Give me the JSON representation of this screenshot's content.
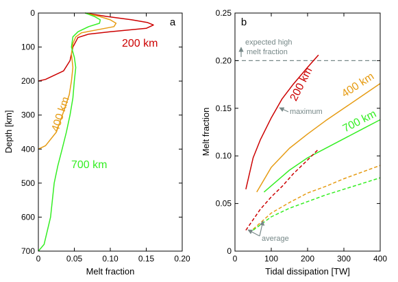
{
  "colors": {
    "red": "#cc0000",
    "orange": "#e69b12",
    "green": "#33ee22",
    "gray": "#778888"
  },
  "chart_data": [
    {
      "type": "line",
      "panel_label": "a",
      "xlabel": "Melt fraction",
      "ylabel": "Depth [km]",
      "xlim": [
        0,
        0.2
      ],
      "ylim": [
        0,
        700
      ],
      "y_inverted": true,
      "xticks": [
        "0",
        "0.05",
        "0.10",
        "0.15",
        "0.20"
      ],
      "yticks": [
        "0",
        "100",
        "200",
        "300",
        "400",
        "500",
        "600",
        "700"
      ],
      "grid": false,
      "series": [
        {
          "name": "200 km",
          "color": "red",
          "x": [
            0.065,
            0.095,
            0.13,
            0.152,
            0.16,
            0.15,
            0.1,
            0.07,
            0.055,
            0.048,
            0.044,
            0.035,
            0.01,
            0.0
          ],
          "y": [
            0,
            10,
            20,
            28,
            35,
            45,
            55,
            62,
            72,
            100,
            140,
            170,
            195,
            200
          ]
        },
        {
          "name": "400 km",
          "color": "orange",
          "x": [
            0.065,
            0.085,
            0.1,
            0.108,
            0.105,
            0.08,
            0.06,
            0.052,
            0.048,
            0.046,
            0.048,
            0.046,
            0.043,
            0.035,
            0.025,
            0.01,
            0.0
          ],
          "y": [
            0,
            10,
            20,
            30,
            40,
            50,
            58,
            70,
            90,
            120,
            160,
            200,
            240,
            290,
            350,
            390,
            400
          ]
        },
        {
          "name": "700 km",
          "color": "green",
          "x": [
            0.065,
            0.078,
            0.086,
            0.085,
            0.07,
            0.055,
            0.048,
            0.046,
            0.05,
            0.052,
            0.05,
            0.048,
            0.044,
            0.039,
            0.033,
            0.027,
            0.022,
            0.017,
            0.008,
            0.0
          ],
          "y": [
            0,
            10,
            20,
            30,
            40,
            55,
            70,
            100,
            130,
            160,
            200,
            250,
            300,
            350,
            400,
            450,
            500,
            600,
            680,
            700
          ]
        }
      ],
      "annotations": [
        {
          "text": "200 km",
          "color": "red"
        },
        {
          "text": "400 km",
          "color": "orange"
        },
        {
          "text": "700 km",
          "color": "green"
        }
      ]
    },
    {
      "type": "line",
      "panel_label": "b",
      "xlabel": "Tidal dissipation [TW]",
      "ylabel": "Melt fraction",
      "xlim": [
        0,
        400
      ],
      "ylim": [
        0,
        0.25
      ],
      "xticks": [
        "0",
        "100",
        "200",
        "300",
        "400"
      ],
      "yticks": [
        "0",
        "0.05",
        "0.10",
        "0.15",
        "0.20",
        "0.25"
      ],
      "grid": false,
      "reference_line": {
        "y": 0.2,
        "style": "dashed",
        "color": "gray",
        "label": "expected high melt fraction"
      },
      "series": [
        {
          "name": "200 km",
          "color": "red",
          "style": "solid",
          "x": [
            30,
            50,
            70,
            100,
            130,
            160,
            200,
            230
          ],
          "y": [
            0.065,
            0.098,
            0.117,
            0.14,
            0.16,
            0.175,
            0.193,
            0.206
          ]
        },
        {
          "name": "400 km",
          "color": "orange",
          "style": "solid",
          "x": [
            60,
            100,
            150,
            200,
            250,
            300,
            350,
            400
          ],
          "y": [
            0.062,
            0.088,
            0.108,
            0.123,
            0.137,
            0.15,
            0.163,
            0.176
          ]
        },
        {
          "name": "700 km",
          "color": "green",
          "style": "solid",
          "x": [
            80,
            150,
            200,
            250,
            300,
            350,
            400
          ],
          "y": [
            0.062,
            0.085,
            0.098,
            0.108,
            0.118,
            0.128,
            0.138
          ]
        },
        {
          "color": "red",
          "style": "dashed",
          "x": [
            30,
            50,
            70,
            100,
            130,
            160,
            190,
            230
          ],
          "y": [
            0.022,
            0.033,
            0.044,
            0.057,
            0.068,
            0.081,
            0.092,
            0.107
          ]
        },
        {
          "color": "orange",
          "style": "dashed",
          "x": [
            50,
            100,
            150,
            200,
            250,
            300,
            350,
            400
          ],
          "y": [
            0.023,
            0.04,
            0.051,
            0.061,
            0.068,
            0.076,
            0.083,
            0.09
          ]
        },
        {
          "color": "green",
          "style": "dashed",
          "x": [
            50,
            100,
            150,
            200,
            250,
            300,
            350,
            400
          ],
          "y": [
            0.022,
            0.036,
            0.045,
            0.052,
            0.059,
            0.065,
            0.071,
            0.077
          ]
        }
      ],
      "annotations": [
        {
          "text": "200 km",
          "color": "red"
        },
        {
          "text": "400 km",
          "color": "orange"
        },
        {
          "text": "700 km",
          "color": "green"
        },
        {
          "text": "maximum",
          "color": "gray"
        },
        {
          "text": "average",
          "color": "gray"
        },
        {
          "text": "expected high",
          "color": "gray"
        },
        {
          "text": "melt fraction",
          "color": "gray"
        }
      ]
    }
  ]
}
